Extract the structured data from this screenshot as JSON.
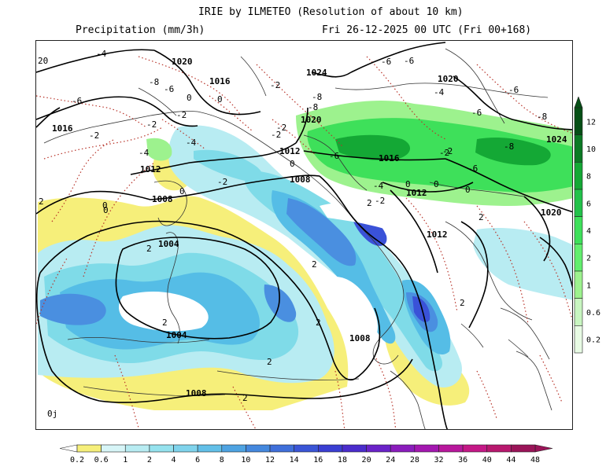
{
  "header": {
    "title": "IRIE by ILMETEO (Resolution of about 10 km)",
    "field": "Precipitation (mm/3h)",
    "valid": "Fri 26-12-2025 00 UTC (Fri 00+168)"
  },
  "colors": {
    "light_blue": "#b8ecf2",
    "cyan": "#7fdbe8",
    "sky_blue": "#55bde6",
    "mid_blue": "#4a8fe0",
    "deep_blue": "#3a52d8",
    "yellow": "#f6ef7a",
    "green_light": "#9df28e",
    "green": "#3ee05a",
    "green_dark": "#14a835"
  },
  "right_scale": {
    "labels": [
      "12",
      "10",
      "8",
      "6",
      "4",
      "2",
      "1",
      "0.6",
      "0.2"
    ],
    "colors": [
      "#064f16",
      "#0b7a24",
      "#14a835",
      "#22c24a",
      "#3ee05a",
      "#62ee6e",
      "#9df28e",
      "#c8f5c0",
      "#e8fbe4"
    ]
  },
  "bottom_scale": {
    "labels": [
      "0.2",
      "0.6",
      "1",
      "2",
      "4",
      "6",
      "8",
      "10",
      "12",
      "14",
      "16",
      "18",
      "20",
      "24",
      "28",
      "32",
      "36",
      "40",
      "44",
      "48"
    ],
    "colors": [
      "#f6ef7a",
      "#d7f5f7",
      "#b8ecf2",
      "#95e2ee",
      "#7fd3ec",
      "#62bfe8",
      "#4ea3e2",
      "#4488de",
      "#3f6fda",
      "#3a55d6",
      "#3a3ed2",
      "#4a2ccc",
      "#6a22c8",
      "#8a1cbc",
      "#a317b0",
      "#b8179c",
      "#c41886",
      "#b8186e",
      "#9a1458"
    ]
  },
  "isobars": {
    "labels": [
      "1020",
      "1016",
      "1024",
      "1020",
      "1016",
      "1020",
      "1012",
      "1016",
      "1012",
      "1008",
      "1012",
      "1012",
      "1020",
      "1024",
      "1008",
      "1004",
      "1004",
      "1008",
      "1008"
    ]
  },
  "temperatures": {
    "labels": [
      "20",
      "-4",
      "-6",
      "-6",
      "-8",
      "-6",
      "-2",
      "-6",
      "-8",
      "-2",
      "-2",
      "-4",
      "0",
      "0",
      "-6",
      "-2",
      "-4",
      "-2",
      "-8",
      "-2",
      "-6",
      "-4",
      "-2",
      "-6",
      "-4",
      "0",
      "-2",
      "0",
      "0",
      "0",
      "-2",
      "-2",
      "0",
      "-6",
      "-8",
      "-8",
      "2",
      "2",
      "2",
      "2",
      "2",
      "2",
      "2",
      "2",
      "2",
      "0",
      "2",
      "0",
      "0j"
    ]
  }
}
